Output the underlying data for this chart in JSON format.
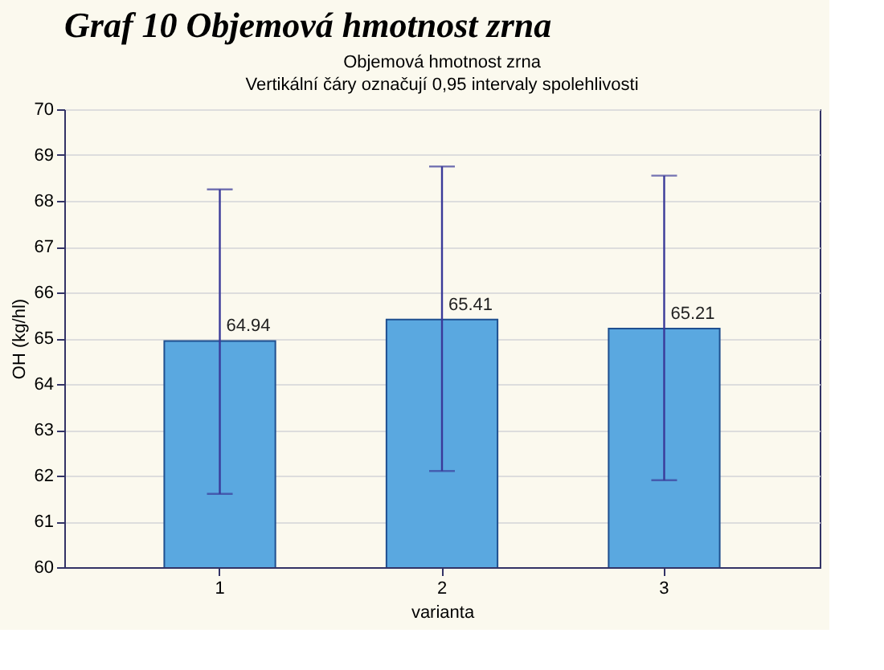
{
  "chart_data": {
    "type": "bar",
    "title": "Objemová hmotnost zrna",
    "subtitle": "Vertikální čáry označují 0,95 intervaly spolehlivosti",
    "annotations": [
      "Graf 10 Objemová hmotnost zrna"
    ],
    "xlabel": "varianta",
    "ylabel": "OH (kg/hl)",
    "categories": [
      "1",
      "2",
      "3"
    ],
    "values": [
      64.94,
      65.41,
      65.21
    ],
    "errors": [
      [
        61.6,
        68.25
      ],
      [
        62.1,
        68.75
      ],
      [
        61.9,
        68.55
      ]
    ],
    "color": "#5aa8e0",
    "data_labels": true,
    "ylim": [
      60,
      70
    ],
    "yticks": [
      60,
      61,
      62,
      63,
      64,
      65,
      66,
      67,
      68,
      69,
      70
    ],
    "grid": "y"
  }
}
